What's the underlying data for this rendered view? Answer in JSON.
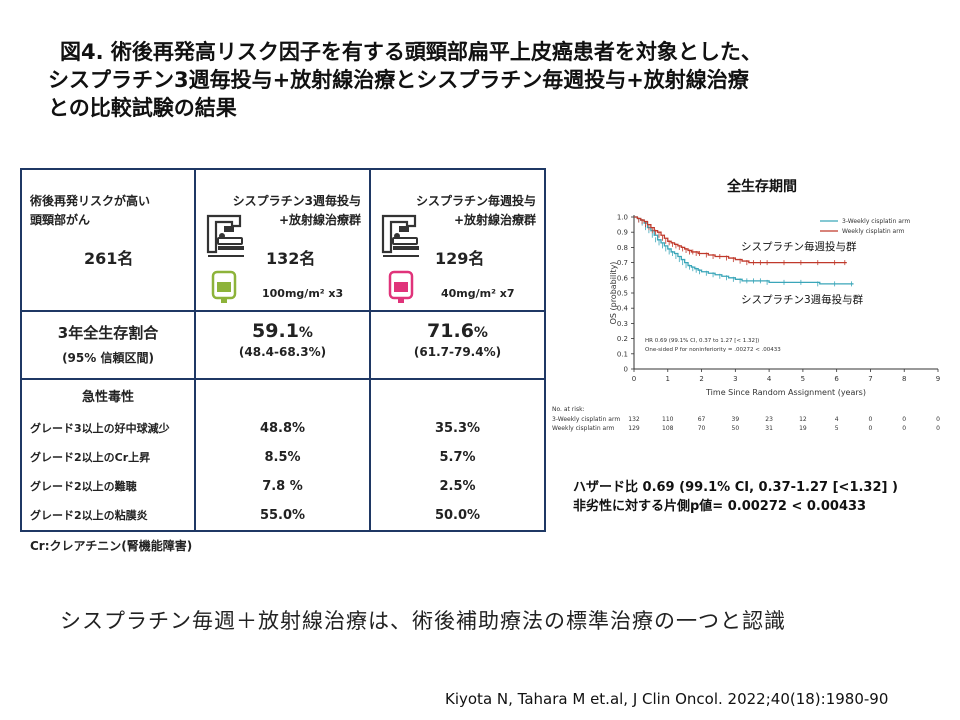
{
  "title": {
    "line1": "図4. 術後再発高リスク因子を有する頭頸部扁平上皮癌患者を対象とした、",
    "line2": "シスプラチン3週毎投与+放射線治療とシスプラチン毎週投与+放射線治療",
    "line3": "との比較試験の結果"
  },
  "table": {
    "header": {
      "c1_line1": "術後再発リスクが高い",
      "c1_line2": "頭頸部がん",
      "c1_count": "261名",
      "c2_line1": "シスプラチン3週毎投与",
      "c2_line2": "+放射線治療群",
      "c2_count": "132名",
      "c2_dose": "100mg/m² x3",
      "c3_line1": "シスプラチン毎週投与",
      "c3_line2": "+放射線治療群",
      "c3_count": "129名",
      "c3_dose": "40mg/m² x7"
    },
    "os": {
      "label_line1": "3年全生存割合",
      "label_line2": "(95% 信頼区間)",
      "c2_value": "59.1",
      "c2_unit": "%",
      "c2_ci": "(48.4-68.3%)",
      "c3_value": "71.6",
      "c3_unit": "%",
      "c3_ci": "(61.7-79.4%)"
    },
    "tox": {
      "heading": "急性毒性",
      "rows": [
        {
          "label": "グレード3以上の好中球減少",
          "c2": "48.8%",
          "c3": "35.3%"
        },
        {
          "label": "グレード2以上のCr上昇",
          "c2": "8.5%",
          "c3": "5.7%"
        },
        {
          "label": "グレード2以上の難聴",
          "c2": "7.8 %",
          "c3": "2.5%"
        },
        {
          "label": "グレード2以上の粘膜炎",
          "c2": "55.0%",
          "c3": "50.0%"
        }
      ]
    }
  },
  "footnote": "Cr:クレアチニン(腎機能障害)",
  "bottom_text": "シスプラチン毎週＋放射線治療は、術後補助療法の標準治療の一つと認識",
  "citation": "Kiyota N, Tahara M  et.al, J Clin Oncol. 2022;40(18):1980-90",
  "hazard": {
    "line1": "ハザード比 0.69 (99.1% CI, 0.37-1.27 [<1.32] )",
    "line2": "非劣性に対する片側p値= 0.00272 < 0.00433"
  },
  "colors": {
    "border": "#1f3864",
    "weekly": "#c0392b",
    "three_weekly": "#3aa6b9",
    "bag_green": "#8db33a",
    "bag_pink": "#e0337a"
  },
  "chart_data": {
    "type": "line",
    "title": "全生存期間",
    "xlabel": "Time Since Random Assignment (years)",
    "ylabel": "OS (probability)",
    "xlim": [
      0,
      9
    ],
    "ylim": [
      0,
      1.0
    ],
    "xticks": [
      "0",
      "1",
      "2",
      "3",
      "4",
      "5",
      "6",
      "7",
      "8",
      "9"
    ],
    "yticks": [
      "0",
      "0.1",
      "0.2",
      "0.3",
      "0.4",
      "0.5",
      "0.6",
      "0.7",
      "0.8",
      "0.9",
      "1.0"
    ],
    "legend": [
      "3-Weekly cisplatin arm",
      "Weekly cisplatin arm"
    ],
    "legend_position": "top-right",
    "annotation_weekly": "シスプラチン毎週投与群",
    "annotation_three_weekly": "シスプラチン3週毎投与群",
    "inset_line1": "HR 0.69 (99.1% CI, 0.37 to 1.27 [< 1.32])",
    "inset_line2": "One-sided P for noninferiority = .00272 < .00433",
    "series": [
      {
        "name": "3-Weekly cisplatin arm",
        "x": [
          0,
          0.1,
          0.2,
          0.3,
          0.4,
          0.5,
          0.6,
          0.7,
          0.8,
          0.9,
          1.0,
          1.1,
          1.2,
          1.3,
          1.4,
          1.5,
          1.6,
          1.7,
          1.8,
          1.9,
          2.0,
          2.2,
          2.4,
          2.6,
          2.8,
          3.0,
          3.2,
          3.4,
          3.6,
          3.8,
          4.0,
          4.5,
          5.0,
          5.5,
          6.0,
          6.5
        ],
        "y": [
          1.0,
          0.99,
          0.98,
          0.96,
          0.93,
          0.91,
          0.88,
          0.85,
          0.83,
          0.81,
          0.79,
          0.77,
          0.76,
          0.74,
          0.72,
          0.7,
          0.68,
          0.67,
          0.66,
          0.65,
          0.64,
          0.63,
          0.62,
          0.61,
          0.6,
          0.59,
          0.58,
          0.58,
          0.58,
          0.58,
          0.57,
          0.57,
          0.57,
          0.56,
          0.56,
          0.56
        ]
      },
      {
        "name": "Weekly cisplatin arm",
        "x": [
          0,
          0.1,
          0.2,
          0.3,
          0.4,
          0.5,
          0.6,
          0.7,
          0.8,
          0.9,
          1.0,
          1.1,
          1.2,
          1.3,
          1.4,
          1.5,
          1.6,
          1.7,
          1.8,
          1.9,
          2.0,
          2.2,
          2.4,
          2.6,
          2.8,
          3.0,
          3.2,
          3.4,
          3.6,
          3.8,
          4.0,
          4.5,
          5.0,
          5.5,
          6.0,
          6.3
        ],
        "y": [
          1.0,
          0.99,
          0.98,
          0.97,
          0.95,
          0.93,
          0.91,
          0.9,
          0.88,
          0.86,
          0.84,
          0.83,
          0.82,
          0.81,
          0.8,
          0.79,
          0.78,
          0.77,
          0.77,
          0.76,
          0.76,
          0.75,
          0.74,
          0.74,
          0.73,
          0.72,
          0.71,
          0.7,
          0.7,
          0.7,
          0.7,
          0.7,
          0.7,
          0.7,
          0.7,
          0.7
        ]
      }
    ],
    "at_risk": {
      "label": "No. at risk:",
      "rows": [
        {
          "name": "3-Weekly cisplatin arm",
          "values": [
            "132",
            "110",
            "67",
            "39",
            "23",
            "12",
            "4",
            "0",
            "0",
            "0"
          ]
        },
        {
          "name": "Weekly cisplatin arm",
          "values": [
            "129",
            "108",
            "70",
            "50",
            "31",
            "19",
            "5",
            "0",
            "0",
            "0"
          ]
        }
      ]
    }
  }
}
